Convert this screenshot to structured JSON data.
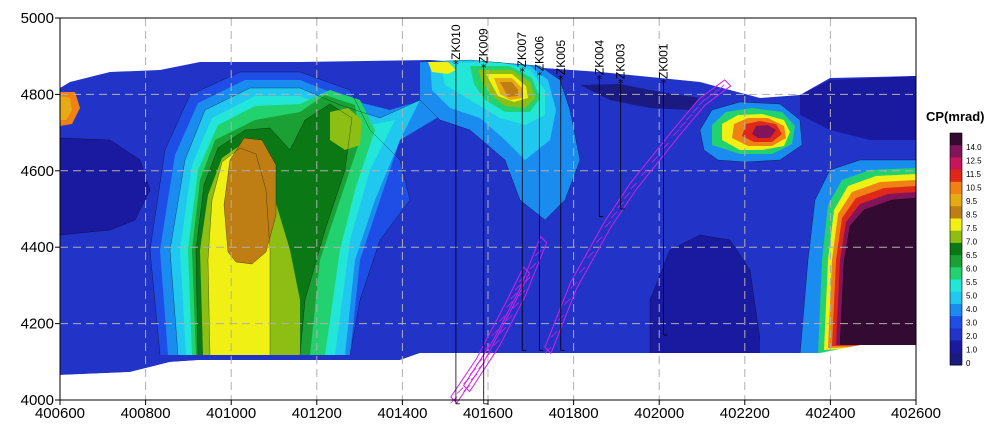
{
  "chart_data": {
    "type": "heatmap",
    "title": "",
    "xlabel": "",
    "ylabel": "",
    "xlim": [
      400600,
      402600
    ],
    "ylim": [
      4000,
      5000
    ],
    "x_ticks": [
      "400600",
      "400800",
      "401000",
      "401200",
      "401400",
      "401600",
      "401800",
      "402000",
      "402200",
      "402400",
      "402600"
    ],
    "y_ticks": [
      "4000",
      "4200",
      "4400",
      "4600",
      "4800",
      "5000"
    ],
    "grid": true,
    "colorbar": {
      "title": "CP(mrad)",
      "levels": [
        "0",
        "1.0",
        "2.0",
        "3.0",
        "4.0",
        "5.0",
        "5.5",
        "6.0",
        "6.5",
        "7.0",
        "7.5",
        "8.5",
        "9.5",
        "10.5",
        "11.5",
        "12.5",
        "14.0"
      ],
      "colors": [
        "#1a1a80",
        "#1a1aa0",
        "#2233c8",
        "#1e4ee6",
        "#1a8cf0",
        "#20c8f0",
        "#22e6d8",
        "#22d26e",
        "#1aa034",
        "#0a7814",
        "#8cbe14",
        "#f0f014",
        "#be7e14",
        "#e6aa14",
        "#f08214",
        "#e0281a",
        "#c81458",
        "#82145a",
        "#320a32"
      ]
    },
    "wells": [
      {
        "name": "ZK010",
        "x": 401525,
        "top": 4880,
        "bottom": 3990
      },
      {
        "name": "ZK009",
        "x": 401590,
        "top": 4870,
        "bottom": 3990
      },
      {
        "name": "ZK007",
        "x": 401680,
        "top": 4860,
        "bottom": 4130
      },
      {
        "name": "ZK006",
        "x": 401720,
        "top": 4850,
        "bottom": 4130
      },
      {
        "name": "ZK005",
        "x": 401770,
        "top": 4840,
        "bottom": 4130
      },
      {
        "name": "ZK004",
        "x": 401860,
        "top": 4840,
        "bottom": 4480
      },
      {
        "name": "ZK003",
        "x": 401910,
        "top": 4830,
        "bottom": 4500
      },
      {
        "name": "ZK001",
        "x": 402010,
        "top": 4830,
        "bottom": 4170
      }
    ],
    "ore_bodies": [
      {
        "name": "",
        "points": [
          [
            401740,
            4130
          ],
          [
            401800,
            4300
          ],
          [
            401880,
            4460
          ],
          [
            401940,
            4560
          ],
          [
            402040,
            4700
          ],
          [
            402100,
            4780
          ],
          [
            402160,
            4830
          ]
        ]
      },
      {
        "name": "",
        "points": [
          [
            401520,
            4000
          ],
          [
            401580,
            4100
          ],
          [
            401650,
            4250
          ],
          [
            401690,
            4340
          ]
        ]
      },
      {
        "name": "",
        "points": [
          [
            401550,
            4030
          ],
          [
            401620,
            4150
          ],
          [
            401680,
            4280
          ],
          [
            401730,
            4420
          ]
        ]
      }
    ],
    "anomalies": [
      {
        "name": "",
        "center": [
          401060,
          4460
        ],
        "value": 8.5
      },
      {
        "name": "",
        "center": [
          401230,
          4730
        ],
        "value": 7.5
      },
      {
        "name": "",
        "center": [
          401650,
          4810
        ],
        "value": 8.5
      },
      {
        "name": "",
        "center": [
          402260,
          4700
        ],
        "value": 14.0
      },
      {
        "name": "",
        "center": [
          402520,
          4320
        ],
        "value": 14.0
      }
    ]
  }
}
